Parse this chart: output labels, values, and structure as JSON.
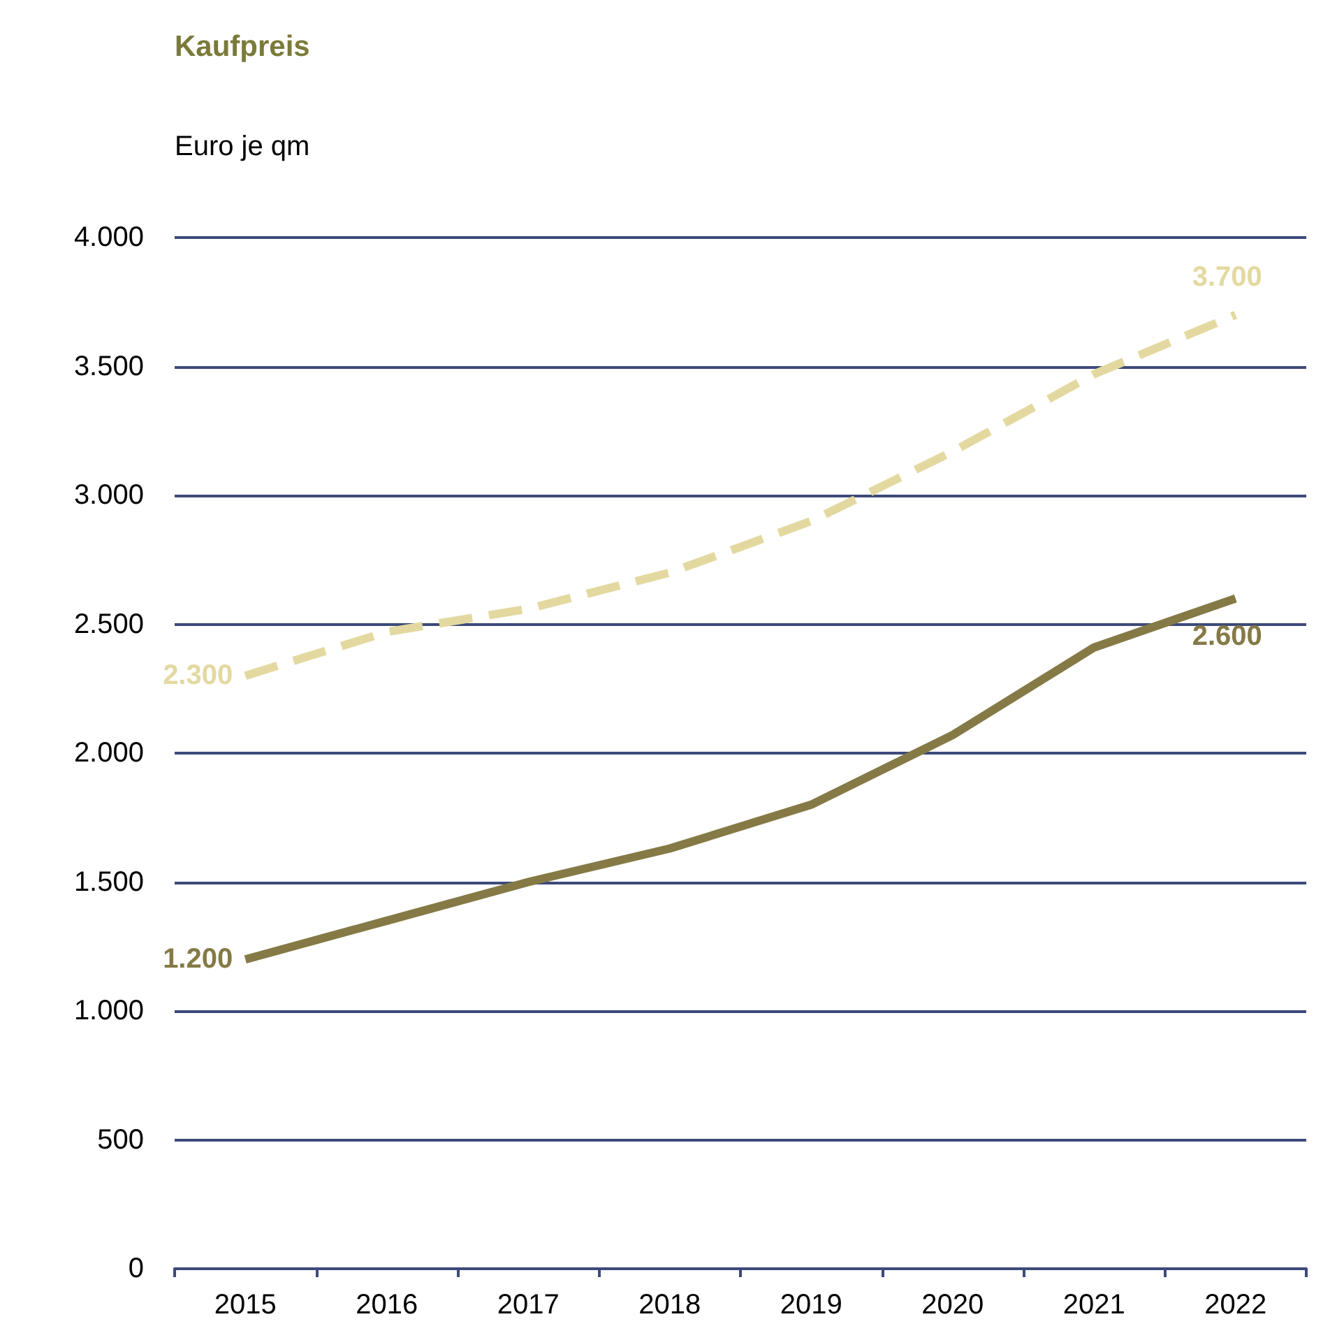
{
  "chart_data": {
    "type": "line",
    "title": "Kaufpreis",
    "ylabel": "Euro je qm",
    "categories": [
      "2015",
      "2016",
      "2017",
      "2018",
      "2019",
      "2020",
      "2021",
      "2022"
    ],
    "series": [
      {
        "color": "#e3d9a0",
        "line_style": "dashed",
        "values": [
          2300,
          2470,
          2560,
          2700,
          2900,
          3170,
          3470,
          3700
        ],
        "value_labels": [
          "2.300",
          null,
          null,
          null,
          null,
          null,
          null,
          "3.700"
        ]
      },
      {
        "color": "#857a46",
        "line_style": "solid",
        "values": [
          1200,
          1350,
          1500,
          1630,
          1800,
          2070,
          2410,
          2600
        ],
        "value_labels": [
          "1.200",
          null,
          null,
          null,
          null,
          null,
          null,
          "2.600"
        ]
      }
    ],
    "ylim": [
      0,
      4000
    ],
    "yticks": [
      {
        "value": 0,
        "label": "0"
      },
      {
        "value": 500,
        "label": "500"
      },
      {
        "value": 1000,
        "label": "1.000"
      },
      {
        "value": 1500,
        "label": "1.500"
      },
      {
        "value": 2000,
        "label": "2.000"
      },
      {
        "value": 2500,
        "label": "2.500"
      },
      {
        "value": 3000,
        "label": "3.000"
      },
      {
        "value": 3500,
        "label": "3.500"
      },
      {
        "value": 4000,
        "label": "4.000"
      }
    ],
    "grid": "y",
    "marker": "none"
  }
}
